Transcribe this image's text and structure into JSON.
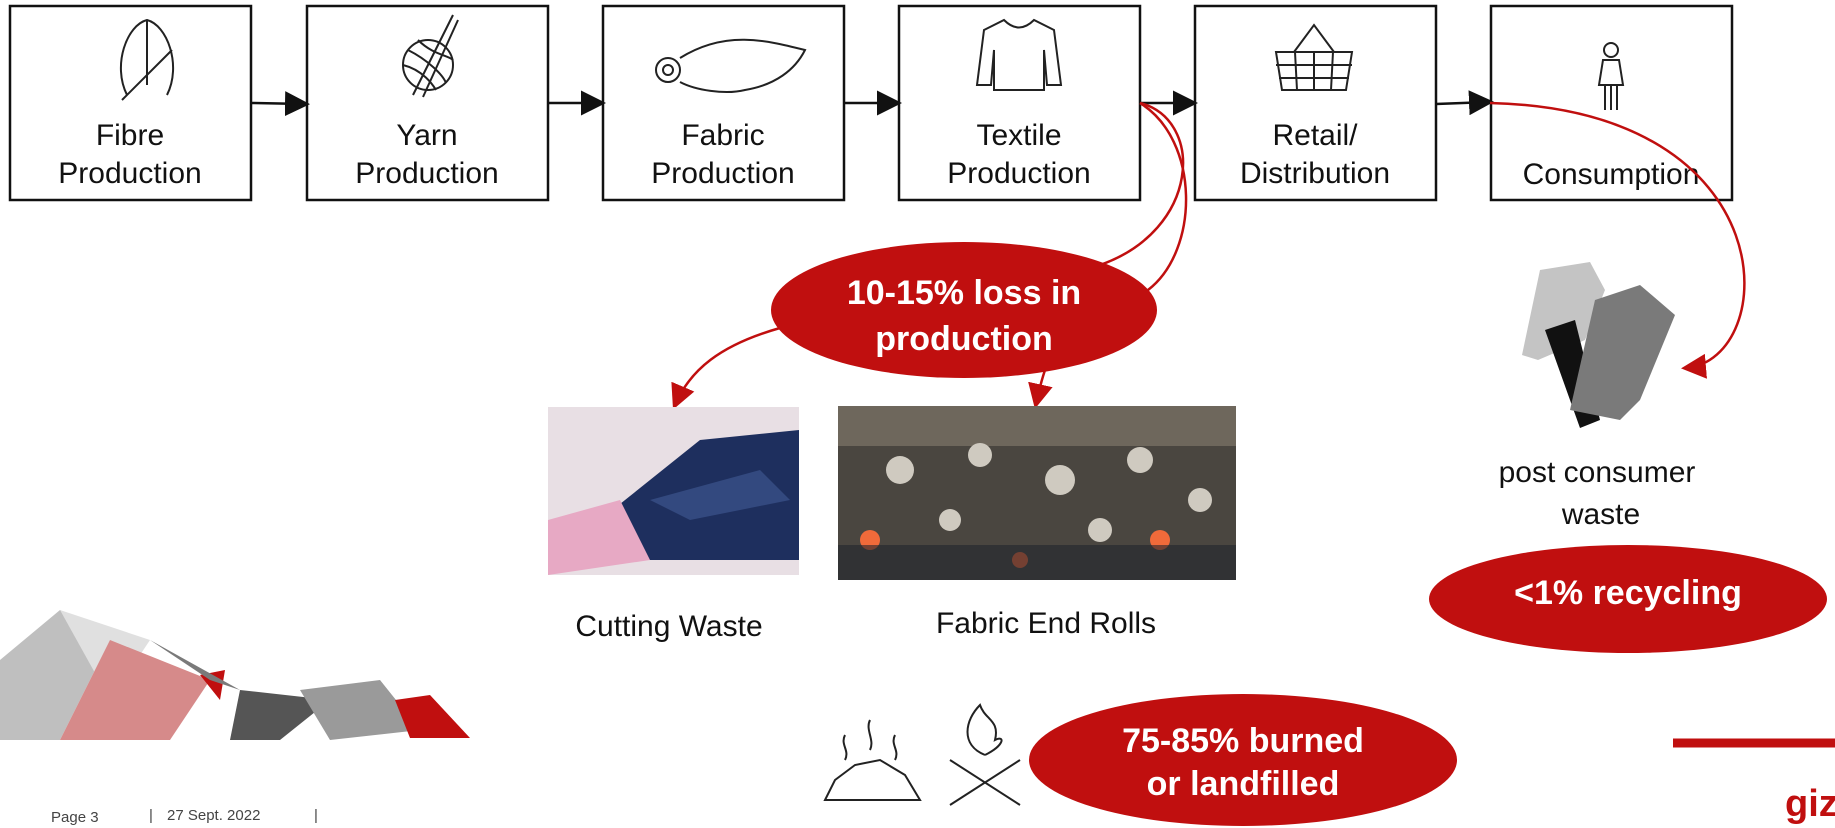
{
  "steps": [
    {
      "label": [
        "Fibre",
        "Production"
      ]
    },
    {
      "label": [
        "Yarn",
        "Production"
      ]
    },
    {
      "label": [
        "Fabric",
        "Production"
      ]
    },
    {
      "label": [
        "Textile",
        "Production"
      ]
    },
    {
      "label": [
        "Retail/",
        "Distribution"
      ]
    },
    {
      "label": [
        "Consumption"
      ]
    }
  ],
  "production_loss": {
    "label": [
      "10-15% loss in",
      "production"
    ]
  },
  "photos": [
    {
      "caption": "Cutting Waste"
    },
    {
      "caption": "Fabric End Rolls"
    }
  ],
  "post_consumer": {
    "label": [
      "post consumer",
      "waste"
    ]
  },
  "recycling": {
    "label": "<1% recycling"
  },
  "disposal": {
    "label": [
      "75-85% burned",
      "or landfilled"
    ]
  },
  "footer": {
    "page": "Page 3",
    "date": "27 Sept. 2022",
    "logo": "giz"
  }
}
